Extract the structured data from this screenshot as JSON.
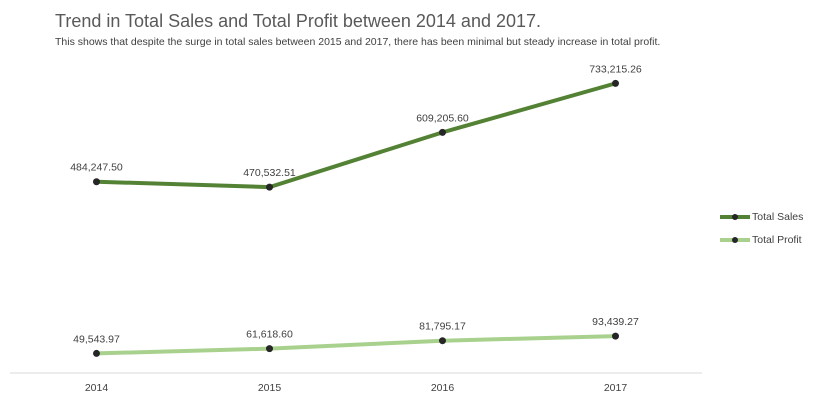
{
  "title": "Trend in Total Sales and Total Profit between 2014 and 2017.",
  "subtitle": "This shows that despite the surge in total sales between 2015 and 2017, there has been minimal but steady increase in total profit.",
  "colors": {
    "sales": "#548235",
    "profit": "#a9d18e",
    "marker": "#262626",
    "axis": "#d9d9d9",
    "text": "#404040"
  },
  "legend": {
    "items": [
      {
        "label": "Total Sales"
      },
      {
        "label": "Total Profit"
      }
    ]
  },
  "chart_data": {
    "type": "line",
    "title": "Trend in Total Sales and Total Profit between 2014 and 2017.",
    "subtitle": "This shows that despite the surge in total sales between 2015 and 2017, there has been minimal but steady increase in total profit.",
    "categories": [
      "2014",
      "2015",
      "2016",
      "2017"
    ],
    "series": [
      {
        "name": "Total Sales",
        "values": [
          484247.5,
          470532.51,
          609205.6,
          733215.26
        ],
        "labels": [
          "484,247.50",
          "470,532.51",
          "609,205.60",
          "733,215.26"
        ]
      },
      {
        "name": "Total Profit",
        "values": [
          49543.97,
          61618.6,
          81795.17,
          93439.27
        ],
        "labels": [
          "49,543.97",
          "61,618.60",
          "81,795.17",
          "93,439.27"
        ]
      }
    ],
    "xlabel": "",
    "ylabel": "",
    "ylim": [
      0,
      800000
    ],
    "y_axis_visible": false,
    "grid": false,
    "legend_position": "right"
  }
}
